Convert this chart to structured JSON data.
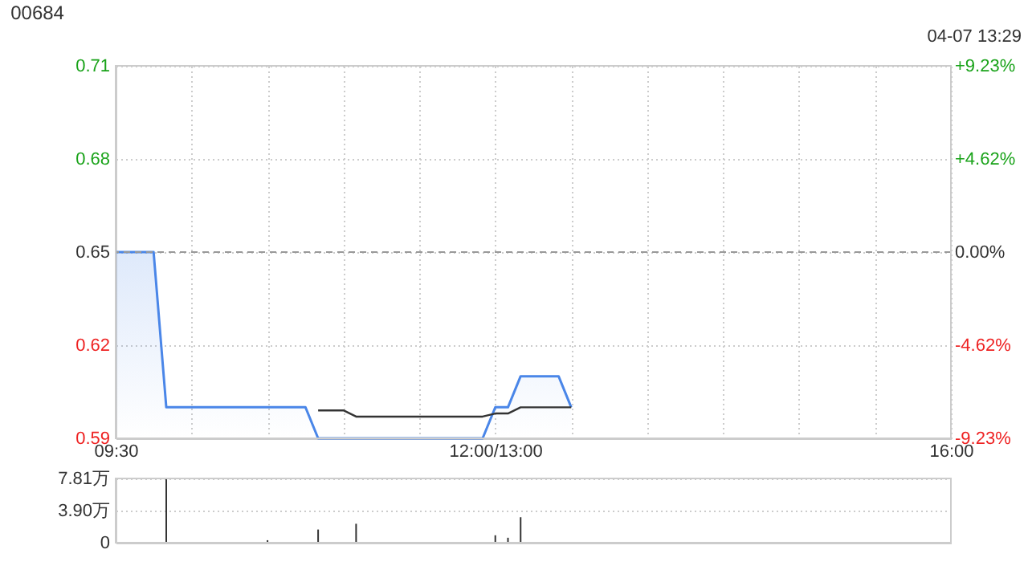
{
  "chart_data": [
    {
      "type": "line",
      "title": "00684",
      "annotations": [
        "04-07 13:29"
      ],
      "categories": [
        "09:30",
        null,
        null,
        null,
        null,
        null,
        null,
        null,
        null,
        null,
        null,
        null,
        null,
        null,
        null,
        null,
        null,
        null,
        null,
        null,
        null,
        null,
        null,
        null,
        null,
        null,
        null,
        null,
        null,
        null,
        "12:00/13:00",
        null,
        null,
        null,
        null,
        null,
        null,
        null,
        null,
        null,
        null,
        null,
        null,
        null,
        null,
        null,
        null,
        null,
        null,
        null,
        null,
        null,
        null,
        null,
        null,
        null,
        null,
        null,
        null,
        null,
        null,
        null,
        null,
        null,
        null,
        null,
        "16:00"
      ],
      "series": [
        {
          "type": "area",
          "color": "#4a86e8",
          "values": [
            0.65,
            0.65,
            0.65,
            0.65,
            0.6,
            0.6,
            0.6,
            0.6,
            0.6,
            0.6,
            0.6,
            0.6,
            0.6,
            0.6,
            0.6,
            0.6,
            0.59,
            0.59,
            0.59,
            0.59,
            0.59,
            0.59,
            0.59,
            0.59,
            0.59,
            0.59,
            0.59,
            0.59,
            0.59,
            0.59,
            0.6,
            0.6,
            0.61,
            0.61,
            0.61,
            0.61,
            0.6,
            null,
            null,
            null,
            null,
            null,
            null,
            null,
            null,
            null,
            null,
            null,
            null,
            null,
            null,
            null,
            null,
            null,
            null,
            null,
            null,
            null,
            null,
            null,
            null,
            null,
            null,
            null,
            null,
            null,
            null
          ]
        },
        {
          "type": "line",
          "color": "#333333",
          "values": [
            null,
            null,
            null,
            null,
            null,
            null,
            null,
            null,
            null,
            null,
            null,
            null,
            null,
            null,
            null,
            null,
            0.599,
            0.599,
            0.599,
            0.597,
            0.597,
            0.597,
            0.597,
            0.597,
            0.597,
            0.597,
            0.597,
            0.597,
            0.597,
            0.597,
            0.598,
            0.598,
            0.6,
            0.6,
            0.6,
            0.6,
            0.6,
            null,
            null,
            null,
            null,
            null,
            null,
            null,
            null,
            null,
            null,
            null,
            null,
            null,
            null,
            null,
            null,
            null,
            null,
            null,
            null,
            null,
            null,
            null,
            null,
            null,
            null,
            null,
            null,
            null,
            null
          ]
        }
      ],
      "ylim": [
        0.59,
        0.71
      ],
      "yticks": [
        0.59,
        0.62,
        0.65,
        0.68,
        0.71
      ],
      "y2lim": [
        -9.23,
        9.23
      ],
      "y2ticks": [
        {
          "value": 9.23,
          "label": "+9.23%"
        },
        {
          "value": 4.62,
          "label": "+4.62%"
        },
        {
          "value": 0,
          "label": "0.00%"
        },
        {
          "value": -4.62,
          "label": "-4.62%"
        },
        {
          "value": -9.23,
          "label": "-9.23%"
        }
      ],
      "ref_lines": [
        {
          "axis": "y",
          "value": 0.65,
          "color": "#999999",
          "line_style": "dashed"
        }
      ],
      "grid": true
    },
    {
      "type": "bar",
      "color": "#333333",
      "categories": [
        null,
        null,
        null,
        null,
        null,
        null,
        null,
        null,
        null,
        null,
        null,
        null,
        null,
        null,
        null,
        null,
        null,
        null,
        null,
        null,
        null,
        null,
        null,
        null,
        null,
        null,
        null,
        null,
        null,
        null,
        null,
        null,
        null,
        null,
        null,
        null,
        null,
        null,
        null,
        null,
        null,
        null,
        null,
        null,
        null,
        null,
        null,
        null,
        null,
        null,
        null,
        null,
        null,
        null,
        null,
        null,
        null,
        null,
        null,
        null,
        null,
        null,
        null,
        null,
        null,
        null,
        null
      ],
      "values": [
        null,
        null,
        null,
        null,
        7.8,
        null,
        null,
        null,
        null,
        null,
        null,
        null,
        0.3,
        null,
        null,
        null,
        1.6,
        null,
        null,
        2.3,
        null,
        null,
        null,
        null,
        null,
        null,
        null,
        null,
        null,
        null,
        0.9,
        0.6,
        3.1,
        null,
        null,
        null,
        null,
        null,
        null,
        null,
        null,
        null,
        null,
        null,
        null,
        null,
        null,
        null,
        null,
        null,
        null,
        null,
        null,
        null,
        null,
        null,
        null,
        null,
        null,
        null,
        null,
        null,
        null,
        null,
        null,
        null,
        null
      ],
      "ylim": [
        0,
        7.81
      ],
      "yticks": [
        0,
        {
          "value": 3.9,
          "label": "3.90万"
        },
        {
          "value": 7.81,
          "label": "7.81万"
        }
      ],
      "tick_labels": "y",
      "grid": "y"
    }
  ]
}
